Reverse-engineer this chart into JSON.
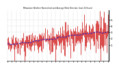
{
  "title": "Milwaukee Weather Normalized and Average Wind Direction (Last 24 Hours)",
  "background_color": "#ffffff",
  "plot_bg_color": "#ffffff",
  "grid_color": "#b0b0b0",
  "bar_color": "#cc0000",
  "line_color": "#2222cc",
  "n_points": 144,
  "y_min": -1.5,
  "y_max": 6.5,
  "yticks": [
    1,
    2,
    3,
    4,
    5
  ],
  "ytick_labels": [
    "1",
    "2",
    "3",
    "4",
    "5"
  ],
  "n_xticks": 24,
  "seed": 7
}
